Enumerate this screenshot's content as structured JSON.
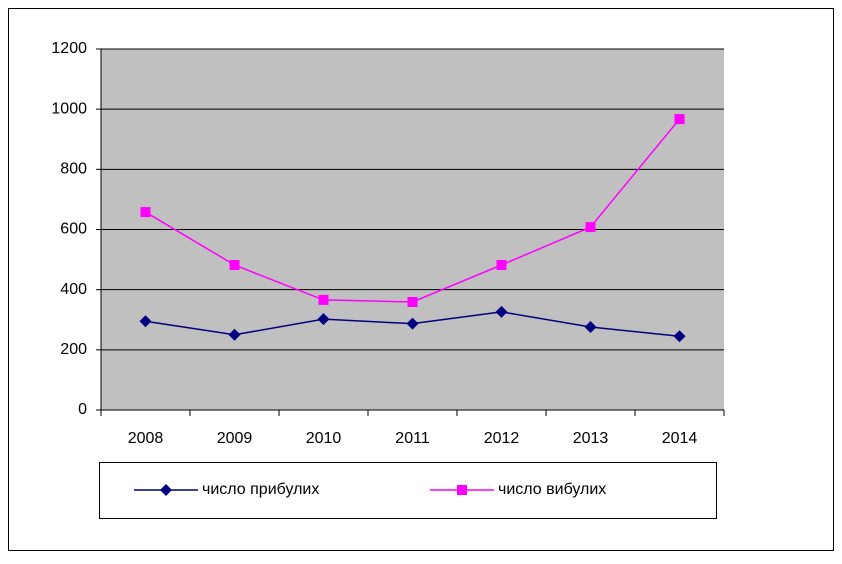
{
  "chart_data": {
    "type": "line",
    "categories": [
      "2008",
      "2009",
      "2010",
      "2011",
      "2012",
      "2013",
      "2014"
    ],
    "series": [
      {
        "name": "число прибулих",
        "color": "#000080",
        "marker": "diamond",
        "values": [
          295,
          250,
          302,
          287,
          326,
          276,
          245
        ]
      },
      {
        "name": "число вибулих",
        "color": "#ff00ff",
        "marker": "square",
        "values": [
          658,
          482,
          366,
          359,
          482,
          608,
          967
        ]
      }
    ],
    "ylim": [
      0,
      1200
    ],
    "yticks": [
      0,
      200,
      400,
      600,
      800,
      1000,
      1200
    ],
    "grid": true,
    "plot_background": "#c0c0c0",
    "legend": "bottom"
  }
}
